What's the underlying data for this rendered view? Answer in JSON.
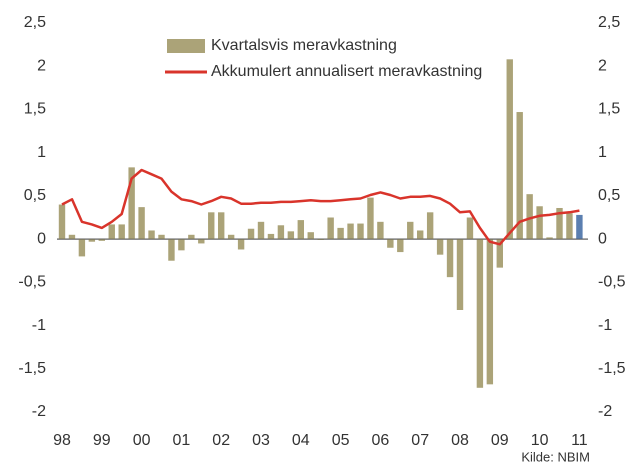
{
  "chart_data": {
    "type": "bar_line",
    "categories": [
      "98",
      null,
      null,
      null,
      "99",
      null,
      null,
      null,
      "00",
      null,
      null,
      null,
      "01",
      null,
      null,
      null,
      "02",
      null,
      null,
      null,
      "03",
      null,
      null,
      null,
      "04",
      null,
      null,
      null,
      "05",
      null,
      null,
      null,
      "06",
      null,
      null,
      null,
      "07",
      null,
      null,
      null,
      "08",
      null,
      null,
      null,
      "09",
      null,
      null,
      null,
      "10",
      null,
      null,
      null,
      "11"
    ],
    "series": [
      {
        "name": "Kvartalsvis meravkastning",
        "type": "bar",
        "color": "#aba378",
        "colors": [
          "#aba378",
          "#aba378",
          "#aba378",
          "#aba378",
          "#aba378",
          "#aba378",
          "#aba378",
          "#aba378",
          "#aba378",
          "#aba378",
          "#aba378",
          "#aba378",
          "#aba378",
          "#aba378",
          "#aba378",
          "#aba378",
          "#aba378",
          "#aba378",
          "#aba378",
          "#aba378",
          "#aba378",
          "#aba378",
          "#aba378",
          "#aba378",
          "#aba378",
          "#aba378",
          "#aba378",
          "#aba378",
          "#aba378",
          "#aba378",
          "#aba378",
          "#aba378",
          "#aba378",
          "#aba378",
          "#aba378",
          "#aba378",
          "#aba378",
          "#aba378",
          "#aba378",
          "#aba378",
          "#aba378",
          "#aba378",
          "#aba378",
          "#aba378",
          "#aba378",
          "#aba378",
          "#aba378",
          "#aba378",
          "#aba378",
          "#aba378",
          "#aba378",
          "#aba378",
          "#5b7fb0"
        ],
        "values": [
          0.4,
          0.05,
          -0.2,
          -0.03,
          -0.02,
          0.17,
          0.17,
          0.83,
          0.37,
          0.1,
          0.05,
          -0.25,
          -0.13,
          0.05,
          -0.05,
          0.31,
          0.31,
          0.05,
          -0.12,
          0.12,
          0.2,
          0.06,
          0.16,
          0.09,
          0.22,
          0.08,
          -0.01,
          0.25,
          0.13,
          0.18,
          0.18,
          0.48,
          0.2,
          -0.1,
          -0.15,
          0.2,
          0.1,
          0.31,
          -0.18,
          -0.44,
          -0.82,
          0.25,
          -1.72,
          -1.68,
          -0.33,
          2.08,
          1.47,
          0.52,
          0.38,
          0.02,
          0.36,
          0.3,
          0.28
        ]
      },
      {
        "name": "Akkumulert annualisert meravkastning",
        "type": "line",
        "color": "#d9342b",
        "values": [
          0.4,
          0.46,
          0.2,
          0.17,
          0.13,
          0.2,
          0.29,
          0.7,
          0.8,
          0.75,
          0.7,
          0.55,
          0.46,
          0.44,
          0.4,
          0.44,
          0.49,
          0.47,
          0.41,
          0.41,
          0.42,
          0.42,
          0.43,
          0.43,
          0.44,
          0.45,
          0.44,
          0.44,
          0.45,
          0.46,
          0.47,
          0.51,
          0.54,
          0.51,
          0.47,
          0.49,
          0.49,
          0.5,
          0.47,
          0.41,
          0.31,
          0.32,
          0.13,
          -0.03,
          -0.06,
          0.07,
          0.2,
          0.24,
          0.27,
          0.28,
          0.3,
          0.31,
          0.33
        ]
      }
    ],
    "ylim": [
      -2,
      2.5
    ],
    "yticks": [
      {
        "value": 2.5,
        "label": "2,5"
      },
      2,
      {
        "value": 1.5,
        "label": "1,5"
      },
      1,
      {
        "value": 0.5,
        "label": "0,5"
      },
      0,
      {
        "value": -0.5,
        "label": "-0,5"
      },
      -1,
      {
        "value": -1.5,
        "label": "-1,5"
      },
      -2
    ],
    "y2lim": [
      -2,
      2.5
    ],
    "y2ticks": [
      {
        "value": 2.5,
        "label": "2,5"
      },
      2,
      {
        "value": 1.5,
        "label": "1,5"
      },
      1,
      {
        "value": 0.5,
        "label": "0,5"
      },
      0,
      {
        "value": -0.5,
        "label": "-0,5"
      },
      -1,
      {
        "value": -1.5,
        "label": "-1,5"
      },
      -2
    ],
    "source": "Kilde: NBIM"
  }
}
